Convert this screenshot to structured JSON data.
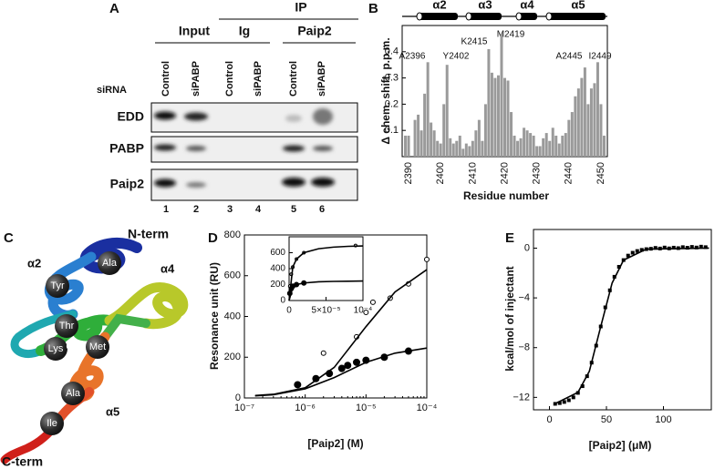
{
  "panel_labels": [
    "A",
    "B",
    "C",
    "D",
    "E"
  ],
  "blot": {
    "ip_label": "IP",
    "group_headers": [
      "Input",
      "Ig",
      "Paip2"
    ],
    "sirna_label": "siRNA",
    "lanes": [
      "Control",
      "siPABP",
      "Control",
      "siPABP",
      "Control",
      "siPABP"
    ],
    "rows": [
      "EDD",
      "PABP",
      "Paip2"
    ],
    "lane_numbers": [
      1,
      2,
      3,
      4,
      5,
      6
    ]
  },
  "structure": {
    "n_term": "N-term",
    "c_term": "C-term",
    "helices": [
      "α2",
      "α3",
      "α4",
      "α5"
    ],
    "residues": [
      "Ala",
      "Tyr",
      "Thr",
      "Lys",
      "Met",
      "Ala",
      "Ile"
    ]
  },
  "chart_data": [
    {
      "type": "bar",
      "color": "#9a9a9a",
      "xlabel": "Residue number",
      "ylabel": "Δ chem. shift, p.p.m.",
      "helices": [
        "α2",
        "α3",
        "α4",
        "α5"
      ],
      "annotations": [
        "A2396",
        "Y2402",
        "K2415",
        "M2419",
        "A2445",
        "I2449"
      ],
      "x": [
        2389,
        2390,
        2392,
        2393,
        2394,
        2395,
        2396,
        2397,
        2398,
        2399,
        2400,
        2401,
        2402,
        2403,
        2404,
        2405,
        2406,
        2407,
        2408,
        2409,
        2410,
        2411,
        2412,
        2413,
        2414,
        2415,
        2416,
        2417,
        2418,
        2419,
        2420,
        2421,
        2422,
        2423,
        2424,
        2425,
        2426,
        2427,
        2428,
        2429,
        2430,
        2431,
        2432,
        2433,
        2434,
        2435,
        2436,
        2437,
        2438,
        2439,
        2440,
        2441,
        2442,
        2443,
        2444,
        2445,
        2446,
        2447,
        2448,
        2449,
        2450,
        2451
      ],
      "values": [
        0.08,
        0.08,
        0.14,
        0.16,
        0.1,
        0.24,
        0.36,
        0.13,
        0.1,
        0.06,
        0.05,
        0.2,
        0.35,
        0.07,
        0.05,
        0.06,
        0.08,
        0.03,
        0.05,
        0.04,
        0.06,
        0.1,
        0.14,
        0.06,
        0.2,
        0.41,
        0.32,
        0.3,
        0.31,
        0.47,
        0.3,
        0.29,
        0.17,
        0.08,
        0.06,
        0.07,
        0.11,
        0.1,
        0.09,
        0.08,
        0.04,
        0.04,
        0.07,
        0.09,
        0.06,
        0.11,
        0.08,
        0.05,
        0.08,
        0.09,
        0.14,
        0.17,
        0.23,
        0.26,
        0.3,
        0.34,
        0.2,
        0.26,
        0.28,
        0.36,
        0.2,
        0.08
      ],
      "xlim": [
        2388,
        2452
      ],
      "xticks": [
        2390,
        2400,
        2410,
        2420,
        2430,
        2440,
        2450
      ],
      "ylim": [
        0,
        0.5
      ],
      "yticks": [
        0.1,
        0.2,
        0.3,
        0.4
      ]
    },
    {
      "type": "line",
      "xscale": "log",
      "xlabel": "[Paip2]   (M)",
      "ylabel": "Resonance unit (RU)",
      "xlim": [
        1e-07,
        0.0001
      ],
      "xticks": [
        {
          "value": 1e-07,
          "label": "10⁻⁷"
        },
        {
          "value": 1e-06,
          "label": "10⁻⁶"
        },
        {
          "value": 1e-05,
          "label": "10⁻⁵"
        },
        {
          "value": 0.0001,
          "label": "10⁻⁴"
        }
      ],
      "ylim": [
        0,
        800
      ],
      "yticks": [
        0,
        200,
        400,
        600,
        800
      ],
      "series": [
        {
          "style": "open-circle",
          "color": "#000000",
          "x": [
            2e-06,
            4e-06,
            7e-06,
            1e-05,
            1.3e-05,
            2.5e-05,
            5e-05,
            0.0001
          ],
          "values": [
            220,
            140,
            300,
            420,
            470,
            490,
            560,
            680
          ]
        },
        {
          "style": "filled-circle",
          "color": "#000000",
          "x": [
            7.5e-07,
            1.5e-06,
            2.5e-06,
            4e-06,
            5e-06,
            7e-06,
            1e-05,
            2e-05,
            5e-05
          ],
          "values": [
            65,
            95,
            120,
            145,
            160,
            175,
            185,
            200,
            230
          ]
        },
        {
          "style": "line",
          "color": "#000000",
          "x": [
            1.5e-07,
            3e-07,
            1e-06,
            3e-06,
            1e-05,
            3e-05,
            0.0001
          ],
          "values": [
            12,
            18,
            50,
            150,
            350,
            520,
            630
          ]
        },
        {
          "style": "line",
          "color": "#000000",
          "x": [
            1.5e-07,
            3e-07,
            1e-06,
            3e-06,
            1e-05,
            3e-05,
            0.0001
          ],
          "values": [
            10,
            16,
            45,
            100,
            175,
            220,
            245
          ]
        }
      ]
    },
    {
      "type": "line",
      "xlim": [
        0,
        0.0001
      ],
      "xticks": [
        0,
        {
          "value": 5e-05,
          "label": "5×10⁻⁵"
        },
        {
          "value": 0.0001,
          "label": "10⁻⁴"
        }
      ],
      "ylim": [
        0,
        800
      ],
      "yticks": [
        0,
        200,
        400,
        600
      ],
      "series": [
        {
          "style": "open-circle",
          "color": "#000000",
          "x": [
            1e-06,
            3e-06,
            5e-06,
            1e-05,
            2e-05,
            9e-05
          ],
          "values": [
            180,
            330,
            420,
            520,
            600,
            690
          ]
        },
        {
          "style": "filled-circle",
          "color": "#000000",
          "x": [
            1e-06,
            3e-06,
            5e-06,
            1e-05,
            2e-05
          ],
          "values": [
            90,
            150,
            180,
            200,
            220
          ]
        },
        {
          "style": "line",
          "color": "#000000",
          "x": [
            0,
            5e-06,
            1e-05,
            2e-05,
            4e-05,
            6e-05,
            8e-05,
            0.0001
          ],
          "values": [
            0,
            420,
            520,
            600,
            650,
            670,
            680,
            685
          ]
        },
        {
          "style": "line",
          "color": "#000000",
          "x": [
            0,
            5e-06,
            1e-05,
            2e-05,
            4e-05,
            6e-05,
            8e-05,
            0.0001
          ],
          "values": [
            0,
            170,
            200,
            220,
            235,
            240,
            242,
            245
          ]
        }
      ]
    },
    {
      "type": "scatter",
      "xlabel": "[Paip2] (μM)",
      "ylabel": "kcal/mol of injectant",
      "xlim": [
        -14,
        142
      ],
      "xticks": [
        0,
        50,
        100
      ],
      "ylim": [
        -13,
        1.5
      ],
      "yticks": [
        {
          "value": -12,
          "label": "−12"
        },
        {
          "value": -8,
          "label": "−8"
        },
        {
          "value": -4,
          "label": "−4"
        },
        0
      ],
      "series": [
        {
          "style": "square",
          "color": "#000000",
          "x": [
            5,
            9,
            13,
            17,
            21,
            25,
            29,
            33,
            37,
            41,
            45,
            49,
            53,
            57,
            61,
            65,
            69,
            73,
            77,
            81,
            85,
            89,
            93,
            97,
            101,
            105,
            109,
            113,
            117,
            121,
            125,
            129,
            133,
            137
          ],
          "values": [
            -12.52,
            -12.46,
            -12.37,
            -12.23,
            -12.0,
            -11.64,
            -11.1,
            -10.3,
            -9.21,
            -7.84,
            -6.3,
            -4.76,
            -3.39,
            -2.3,
            -1.5,
            -0.96,
            -0.6,
            -0.37,
            -0.23,
            -0.14,
            -0.08,
            -0.05,
            0.02,
            -0.03,
            0.05,
            -0.02,
            0.04,
            0,
            0.08,
            0.03,
            0.1,
            0.05,
            0.12,
            0.08
          ]
        },
        {
          "style": "line",
          "color": "#000000",
          "x": [
            5,
            25,
            35,
            45,
            55,
            65,
            85,
            140
          ],
          "values": [
            -12.5,
            -11.6,
            -9.9,
            -6.3,
            -2.8,
            -0.96,
            -0.08,
            0
          ]
        }
      ]
    }
  ]
}
